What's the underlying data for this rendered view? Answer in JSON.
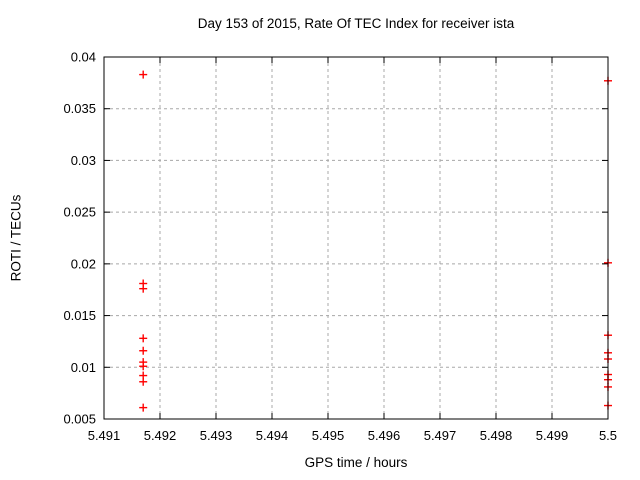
{
  "chart_data": {
    "type": "scatter",
    "title": "Day 153 of 2015, Rate Of TEC Index for receiver ista",
    "xlabel": "GPS time / hours",
    "ylabel": "ROTI / TECUs",
    "xlim": [
      5.491,
      5.5
    ],
    "ylim": [
      0.005,
      0.04
    ],
    "grid": true,
    "legend": "none",
    "marker": "plus",
    "marker_color": "#ff0000",
    "grid_color": "#a8a8a8",
    "border_color": "#000000",
    "xticks": {
      "values": [
        5.491,
        5.492,
        5.493,
        5.494,
        5.495,
        5.496,
        5.497,
        5.498,
        5.499,
        5.5
      ],
      "labels": [
        "5.491",
        "5.492",
        "5.493",
        "5.494",
        "5.495",
        "5.496",
        "5.497",
        "5.498",
        "5.499",
        "5.5"
      ]
    },
    "yticks": {
      "values": [
        0.005,
        0.01,
        0.015,
        0.02,
        0.025,
        0.03,
        0.035,
        0.04
      ],
      "labels": [
        "0.005",
        "0.01",
        "0.015",
        "0.02",
        "0.025",
        "0.03",
        "0.035",
        "0.04"
      ]
    },
    "series": [
      {
        "name": "ROTI",
        "color": "#ff0000",
        "points": [
          {
            "x": 5.4917,
            "y": 0.0383
          },
          {
            "x": 5.4917,
            "y": 0.0181
          },
          {
            "x": 5.4917,
            "y": 0.0176
          },
          {
            "x": 5.4917,
            "y": 0.0128
          },
          {
            "x": 5.4917,
            "y": 0.0116
          },
          {
            "x": 5.4917,
            "y": 0.0105
          },
          {
            "x": 5.4917,
            "y": 0.0101
          },
          {
            "x": 5.4917,
            "y": 0.0092
          },
          {
            "x": 5.4917,
            "y": 0.0086
          },
          {
            "x": 5.4917,
            "y": 0.0061
          },
          {
            "x": 5.5,
            "y": 0.0377
          },
          {
            "x": 5.5,
            "y": 0.0201
          },
          {
            "x": 5.5,
            "y": 0.0131
          },
          {
            "x": 5.5,
            "y": 0.0114
          },
          {
            "x": 5.5,
            "y": 0.0108
          },
          {
            "x": 5.5,
            "y": 0.0093
          },
          {
            "x": 5.5,
            "y": 0.0088
          },
          {
            "x": 5.5,
            "y": 0.0081
          },
          {
            "x": 5.5,
            "y": 0.0063
          }
        ]
      }
    ]
  }
}
